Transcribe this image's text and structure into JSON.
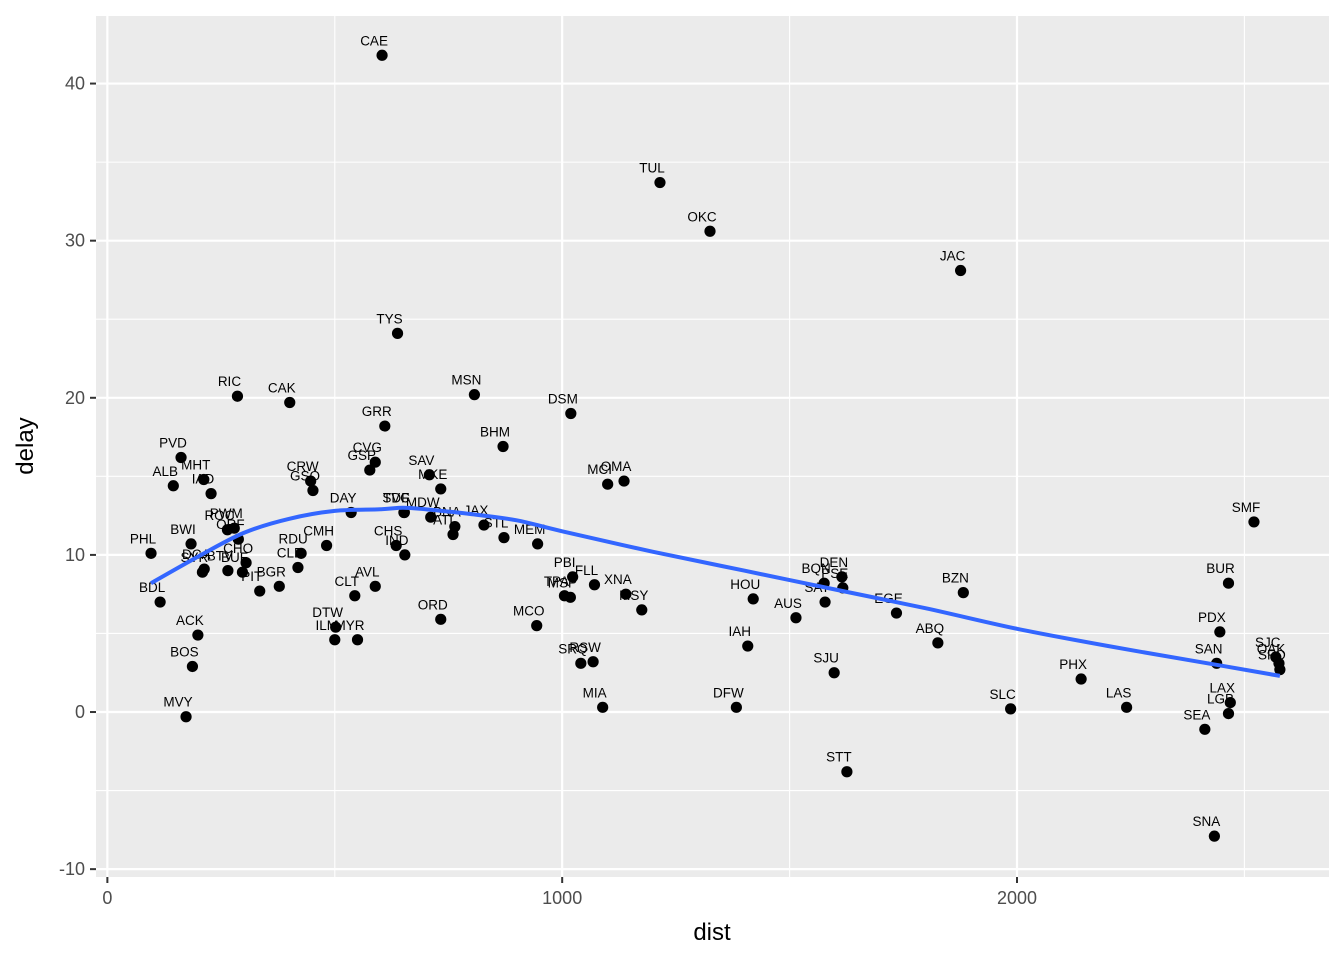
{
  "chart_data": {
    "type": "scatter",
    "title": "",
    "xlabel": "dist",
    "ylabel": "delay",
    "xlim": [
      -25,
      2686
    ],
    "ylim": [
      -10.5,
      44.3
    ],
    "x_ticks": [
      0,
      1000,
      2000
    ],
    "x_tick_labels": [
      "0",
      "1000",
      "2000"
    ],
    "y_ticks": [
      -10,
      0,
      10,
      20,
      30,
      40
    ],
    "y_tick_labels": [
      "-10",
      "0",
      "10",
      "20",
      "30",
      "40"
    ],
    "grid": true,
    "legend": "none",
    "colors": {
      "panel": "#EBEBEB",
      "grid": "#FFFFFF",
      "point": "#000000",
      "smooth": "#3366FF"
    },
    "points": [
      {
        "label": "CAE",
        "x": 604,
        "y": 41.8
      },
      {
        "label": "TUL",
        "x": 1215,
        "y": 33.7
      },
      {
        "label": "OKC",
        "x": 1325,
        "y": 30.6
      },
      {
        "label": "JAC",
        "x": 1876,
        "y": 28.1
      },
      {
        "label": "TYS",
        "x": 638,
        "y": 24.1
      },
      {
        "label": "MSN",
        "x": 807,
        "y": 20.2
      },
      {
        "label": "RIC",
        "x": 286,
        "y": 20.1
      },
      {
        "label": "CAK",
        "x": 401,
        "y": 19.7
      },
      {
        "label": "DSM",
        "x": 1019,
        "y": 19.0
      },
      {
        "label": "GRR",
        "x": 610,
        "y": 18.2
      },
      {
        "label": "BHM",
        "x": 870,
        "y": 16.9
      },
      {
        "label": "PVD",
        "x": 162,
        "y": 16.2
      },
      {
        "label": "CVG",
        "x": 589,
        "y": 15.9
      },
      {
        "label": "GSP",
        "x": 577,
        "y": 15.4
      },
      {
        "label": "SAV",
        "x": 708,
        "y": 15.1
      },
      {
        "label": "MHT",
        "x": 212,
        "y": 14.8
      },
      {
        "label": "CRW",
        "x": 447,
        "y": 14.7
      },
      {
        "label": "OMA",
        "x": 1136,
        "y": 14.7
      },
      {
        "label": "MCI",
        "x": 1100,
        "y": 14.5
      },
      {
        "label": "ALB",
        "x": 145,
        "y": 14.4
      },
      {
        "label": "MKE",
        "x": 733,
        "y": 14.2
      },
      {
        "label": "GSO",
        "x": 452,
        "y": 14.1
      },
      {
        "label": "IAD",
        "x": 228,
        "y": 13.9
      },
      {
        "label": "DAY",
        "x": 536,
        "y": 12.7
      },
      {
        "label": "TVC",
        "x": 653,
        "y": 12.7
      },
      {
        "label": "SDF",
        "x": 652,
        "y": 12.7
      },
      {
        "label": "MDW",
        "x": 711,
        "y": 12.4
      },
      {
        "label": "BNA",
        "x": 764,
        "y": 11.8
      },
      {
        "label": "ATL",
        "x": 760,
        "y": 11.3
      },
      {
        "label": "JAX",
        "x": 828,
        "y": 11.9
      },
      {
        "label": "STL",
        "x": 872,
        "y": 11.1
      },
      {
        "label": "MEM",
        "x": 946,
        "y": 10.7
      },
      {
        "label": "PWM",
        "x": 279,
        "y": 11.7
      },
      {
        "label": "ROC",
        "x": 264,
        "y": 11.6
      },
      {
        "label": "ORF",
        "x": 288,
        "y": 11.0
      },
      {
        "label": "BWI",
        "x": 184,
        "y": 10.7
      },
      {
        "label": "CMH",
        "x": 482,
        "y": 10.6
      },
      {
        "label": "CHS",
        "x": 635,
        "y": 10.6
      },
      {
        "label": "IND",
        "x": 654,
        "y": 10.0
      },
      {
        "label": "PHL",
        "x": 96,
        "y": 10.1
      },
      {
        "label": "RDU",
        "x": 426,
        "y": 10.1
      },
      {
        "label": "CLE",
        "x": 419,
        "y": 9.2
      },
      {
        "label": "CHO",
        "x": 305,
        "y": 9.5
      },
      {
        "label": "DCA",
        "x": 213,
        "y": 9.1
      },
      {
        "label": "SYR",
        "x": 209,
        "y": 8.9
      },
      {
        "label": "BTV",
        "x": 265,
        "y": 9.0
      },
      {
        "label": "BUF",
        "x": 297,
        "y": 8.9
      },
      {
        "label": "PIT",
        "x": 335,
        "y": 7.7
      },
      {
        "label": "BGR",
        "x": 378,
        "y": 8.0
      },
      {
        "label": "AVL",
        "x": 589,
        "y": 8.0
      },
      {
        "label": "CLT",
        "x": 544,
        "y": 7.4
      },
      {
        "label": "BDL",
        "x": 116,
        "y": 7.0
      },
      {
        "label": "PBI",
        "x": 1023,
        "y": 8.6
      },
      {
        "label": "FLL",
        "x": 1071,
        "y": 8.1
      },
      {
        "label": "TPA",
        "x": 1005,
        "y": 7.4
      },
      {
        "label": "MSP",
        "x": 1018,
        "y": 7.3
      },
      {
        "label": "XNA",
        "x": 1140,
        "y": 7.5
      },
      {
        "label": "MSY",
        "x": 1175,
        "y": 6.5
      },
      {
        "label": "HOU",
        "x": 1420,
        "y": 7.2
      },
      {
        "label": "BOS",
        "x": 187,
        "y": 2.9
      },
      {
        "label": "ACK",
        "x": 199,
        "y": 4.9
      },
      {
        "label": "MVY",
        "x": 173,
        "y": -0.3
      },
      {
        "label": "DTW",
        "x": 502,
        "y": 5.4
      },
      {
        "label": "ILM",
        "x": 500,
        "y": 4.6
      },
      {
        "label": "MYR",
        "x": 550,
        "y": 4.6
      },
      {
        "label": "ORD",
        "x": 733,
        "y": 5.9
      },
      {
        "label": "MCO",
        "x": 944,
        "y": 5.5
      },
      {
        "label": "SRQ",
        "x": 1041,
        "y": 3.1
      },
      {
        "label": "RSW",
        "x": 1068,
        "y": 3.2
      },
      {
        "label": "MIA",
        "x": 1089,
        "y": 0.3
      },
      {
        "label": "DFW",
        "x": 1383,
        "y": 0.3
      },
      {
        "label": "IAH",
        "x": 1408,
        "y": 4.2
      },
      {
        "label": "AUS",
        "x": 1514,
        "y": 6.0
      },
      {
        "label": "SAT",
        "x": 1578,
        "y": 7.0
      },
      {
        "label": "BQN",
        "x": 1576,
        "y": 8.2
      },
      {
        "label": "DEN",
        "x": 1615,
        "y": 8.6
      },
      {
        "label": "PSE",
        "x": 1617,
        "y": 7.9
      },
      {
        "label": "EGE",
        "x": 1735,
        "y": 6.3
      },
      {
        "label": "BZN",
        "x": 1882,
        "y": 7.6
      },
      {
        "label": "ABQ",
        "x": 1826,
        "y": 4.4
      },
      {
        "label": "SJU",
        "x": 1598,
        "y": 2.5
      },
      {
        "label": "STT",
        "x": 1626,
        "y": -3.8
      },
      {
        "label": "SLC",
        "x": 1986,
        "y": 0.2
      },
      {
        "label": "PHX",
        "x": 2141,
        "y": 2.1
      },
      {
        "label": "LAS",
        "x": 2241,
        "y": 0.3
      },
      {
        "label": "SMF",
        "x": 2521,
        "y": 12.1
      },
      {
        "label": "BUR",
        "x": 2465,
        "y": 8.2
      },
      {
        "label": "PDX",
        "x": 2446,
        "y": 5.1
      },
      {
        "label": "SAN",
        "x": 2439,
        "y": 3.1
      },
      {
        "label": "SJC",
        "x": 2569,
        "y": 3.5
      },
      {
        "label": "OAK",
        "x": 2576,
        "y": 3.1
      },
      {
        "label": "SFO",
        "x": 2578,
        "y": 2.7
      },
      {
        "label": "LAX",
        "x": 2469,
        "y": 0.6
      },
      {
        "label": "LGB",
        "x": 2465,
        "y": -0.1
      },
      {
        "label": "SEA",
        "x": 2413,
        "y": -1.1
      },
      {
        "label": "SNA",
        "x": 2434,
        "y": -7.9
      }
    ],
    "smooth": {
      "method": "loess",
      "x": [
        96,
        200,
        300,
        400,
        500,
        600,
        650,
        700,
        800,
        900,
        1000,
        1200,
        1400,
        1600,
        1800,
        2000,
        2200,
        2400,
        2578
      ],
      "y": [
        8.2,
        9.9,
        11.4,
        12.3,
        12.8,
        12.9,
        13.0,
        12.9,
        12.6,
        12.2,
        11.5,
        10.2,
        9.0,
        7.8,
        6.6,
        5.3,
        4.2,
        3.2,
        2.3
      ]
    }
  }
}
